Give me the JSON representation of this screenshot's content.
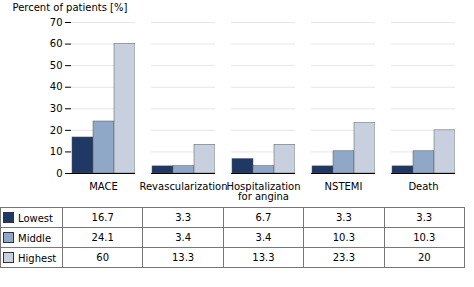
{
  "chart_data": {
    "type": "bar",
    "categories": [
      "MACE",
      "Revascularization",
      "Hospitalization\nfor angina",
      "NSTEMI",
      "Death"
    ],
    "series": [
      {
        "name": "Lowest",
        "color": "#1f3864",
        "values": [
          16.7,
          3.3,
          6.7,
          3.3,
          3.3
        ]
      },
      {
        "name": "Middle",
        "color": "#8fa8c8",
        "values": [
          24.1,
          3.4,
          3.4,
          10.3,
          10.3
        ]
      },
      {
        "name": "Highest",
        "color": "#c8d0e0",
        "values": [
          60,
          13.3,
          13.3,
          23.3,
          20
        ]
      }
    ],
    "ylabel": "Percent of patients [%]",
    "ylim": [
      0,
      70
    ],
    "yticks": [
      0,
      10,
      20,
      30,
      40,
      50,
      60,
      70
    ],
    "grid": true,
    "legend": "bottom",
    "data_labels": true
  }
}
